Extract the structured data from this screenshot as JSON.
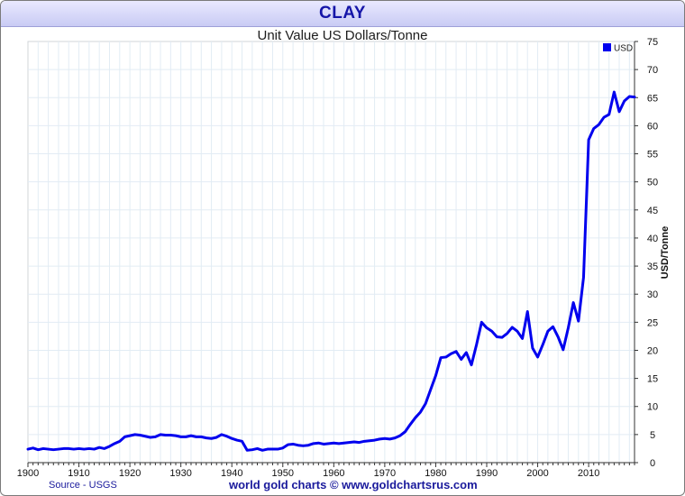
{
  "banner": {
    "title": "CLAY"
  },
  "footer": {
    "source": "Source - USGS",
    "credit": "world gold charts © www.goldchartsrus.com"
  },
  "colors": {
    "line": "#0000ee",
    "grid": "#e2ecf4",
    "banner_text": "#1515a8",
    "footer_text": "#1a1a9c"
  },
  "chart_data": {
    "type": "line",
    "title": "Unit Value US Dollars/Tonne",
    "ylabel": "USD/Tonne",
    "xlabel": "",
    "xlim": [
      1900,
      2019
    ],
    "ylim": [
      0,
      75
    ],
    "x_ticks": [
      1900,
      1910,
      1920,
      1930,
      1940,
      1950,
      1960,
      1970,
      1980,
      1990,
      2000,
      2010
    ],
    "y_ticks": [
      0,
      5,
      10,
      15,
      20,
      25,
      30,
      35,
      40,
      45,
      50,
      55,
      60,
      65,
      70,
      75
    ],
    "legend": {
      "position": "top-right",
      "entries": [
        "USD"
      ]
    },
    "grid": true,
    "series": [
      {
        "name": "USD",
        "points": [
          [
            1900,
            2.4
          ],
          [
            1901,
            2.6
          ],
          [
            1902,
            2.3
          ],
          [
            1903,
            2.5
          ],
          [
            1904,
            2.4
          ],
          [
            1905,
            2.3
          ],
          [
            1906,
            2.4
          ],
          [
            1907,
            2.5
          ],
          [
            1908,
            2.5
          ],
          [
            1909,
            2.4
          ],
          [
            1910,
            2.5
          ],
          [
            1911,
            2.4
          ],
          [
            1912,
            2.5
          ],
          [
            1913,
            2.4
          ],
          [
            1914,
            2.7
          ],
          [
            1915,
            2.5
          ],
          [
            1916,
            2.9
          ],
          [
            1917,
            3.4
          ],
          [
            1918,
            3.8
          ],
          [
            1919,
            4.6
          ],
          [
            1920,
            4.8
          ],
          [
            1921,
            5.0
          ],
          [
            1922,
            4.9
          ],
          [
            1923,
            4.7
          ],
          [
            1924,
            4.5
          ],
          [
            1925,
            4.6
          ],
          [
            1926,
            5.0
          ],
          [
            1927,
            4.9
          ],
          [
            1928,
            4.9
          ],
          [
            1929,
            4.8
          ],
          [
            1930,
            4.6
          ],
          [
            1931,
            4.6
          ],
          [
            1932,
            4.8
          ],
          [
            1933,
            4.6
          ],
          [
            1934,
            4.6
          ],
          [
            1935,
            4.4
          ],
          [
            1936,
            4.3
          ],
          [
            1937,
            4.5
          ],
          [
            1938,
            5.0
          ],
          [
            1939,
            4.7
          ],
          [
            1940,
            4.3
          ],
          [
            1941,
            4.0
          ],
          [
            1942,
            3.8
          ],
          [
            1943,
            2.2
          ],
          [
            1944,
            2.3
          ],
          [
            1945,
            2.5
          ],
          [
            1946,
            2.2
          ],
          [
            1947,
            2.4
          ],
          [
            1948,
            2.4
          ],
          [
            1949,
            2.4
          ],
          [
            1950,
            2.6
          ],
          [
            1951,
            3.2
          ],
          [
            1952,
            3.3
          ],
          [
            1953,
            3.1
          ],
          [
            1954,
            3.0
          ],
          [
            1955,
            3.1
          ],
          [
            1956,
            3.4
          ],
          [
            1957,
            3.5
          ],
          [
            1958,
            3.3
          ],
          [
            1959,
            3.4
          ],
          [
            1960,
            3.5
          ],
          [
            1961,
            3.4
          ],
          [
            1962,
            3.5
          ],
          [
            1963,
            3.6
          ],
          [
            1964,
            3.7
          ],
          [
            1965,
            3.6
          ],
          [
            1966,
            3.8
          ],
          [
            1967,
            3.9
          ],
          [
            1968,
            4.0
          ],
          [
            1969,
            4.2
          ],
          [
            1970,
            4.3
          ],
          [
            1971,
            4.2
          ],
          [
            1972,
            4.4
          ],
          [
            1973,
            4.8
          ],
          [
            1974,
            5.5
          ],
          [
            1975,
            6.8
          ],
          [
            1976,
            8.0
          ],
          [
            1977,
            9.0
          ],
          [
            1978,
            10.5
          ],
          [
            1979,
            13.0
          ],
          [
            1980,
            15.5
          ],
          [
            1981,
            18.7
          ],
          [
            1982,
            18.8
          ],
          [
            1983,
            19.4
          ],
          [
            1984,
            19.8
          ],
          [
            1985,
            18.4
          ],
          [
            1986,
            19.6
          ],
          [
            1987,
            17.4
          ],
          [
            1988,
            21.0
          ],
          [
            1989,
            25.0
          ],
          [
            1990,
            24.0
          ],
          [
            1991,
            23.4
          ],
          [
            1992,
            22.4
          ],
          [
            1993,
            22.3
          ],
          [
            1994,
            23.0
          ],
          [
            1995,
            24.1
          ],
          [
            1996,
            23.4
          ],
          [
            1997,
            22.1
          ],
          [
            1998,
            26.9
          ],
          [
            1999,
            20.4
          ],
          [
            2000,
            18.8
          ],
          [
            2001,
            21.0
          ],
          [
            2002,
            23.4
          ],
          [
            2003,
            24.2
          ],
          [
            2004,
            22.4
          ],
          [
            2005,
            20.1
          ],
          [
            2006,
            24.0
          ],
          [
            2007,
            28.5
          ],
          [
            2008,
            25.2
          ],
          [
            2009,
            33.0
          ],
          [
            2010,
            57.5
          ],
          [
            2011,
            59.5
          ],
          [
            2012,
            60.2
          ],
          [
            2013,
            61.5
          ],
          [
            2014,
            62.0
          ],
          [
            2015,
            66.0
          ],
          [
            2016,
            62.5
          ],
          [
            2017,
            64.4
          ],
          [
            2018,
            65.2
          ],
          [
            2019,
            65.1
          ]
        ]
      }
    ]
  }
}
